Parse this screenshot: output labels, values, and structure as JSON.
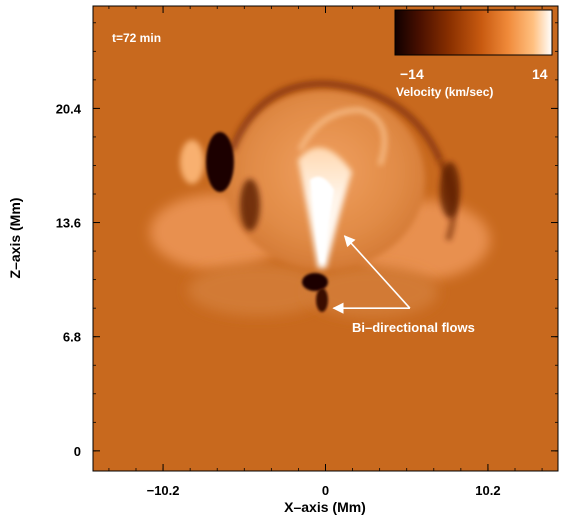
{
  "chart_data": {
    "type": "heatmap",
    "title": "",
    "time_label": "t=72 min",
    "xlabel": "X–axis (Mm)",
    "ylabel": "Z–axis (Mm)",
    "xlim": [
      -14.6,
      14.6
    ],
    "ylim": [
      -1.2,
      26.5
    ],
    "x_ticks": [
      -10.2,
      0,
      10.2
    ],
    "x_tick_labels": [
      "−10.2",
      "0",
      "10.2"
    ],
    "y_ticks": [
      0,
      6.8,
      13.6,
      20.4
    ],
    "y_tick_labels": [
      "0",
      "6.8",
      "13.6",
      "20.4"
    ],
    "colorbar": {
      "min": -14,
      "max": 14,
      "min_label": "−14",
      "max_label": "14",
      "label": "Velocity (km/sec)",
      "colors": [
        "#100000",
        "#4a1000",
        "#8a3000",
        "#c85a10",
        "#f08a3a",
        "#ffc080",
        "#ffffff"
      ]
    },
    "annotation": {
      "text": "Bi–directional flows",
      "arrow_targets": [
        [
          1.2,
          12.8
        ],
        [
          0.5,
          8.5
        ]
      ],
      "arrow_origin": [
        5.3,
        8.5
      ]
    },
    "colors": {
      "background": "#c8691e",
      "dark_feature": "#1c0400",
      "bright_feature": "#ffffff"
    }
  }
}
